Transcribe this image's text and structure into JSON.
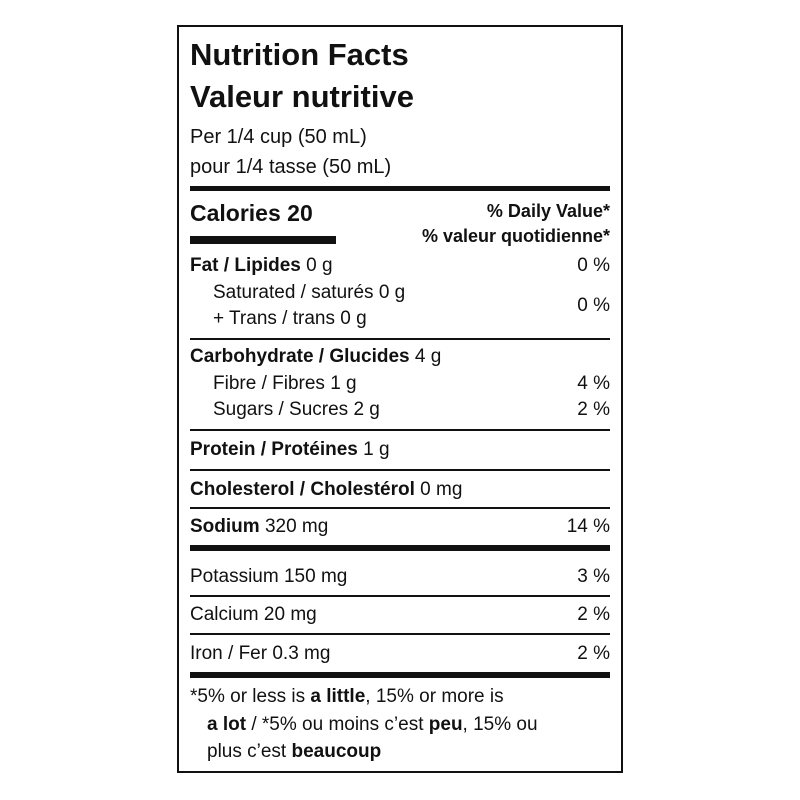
{
  "header": {
    "title_en": "Nutrition Facts",
    "title_fr": "Valeur nutritive",
    "serving_en": "Per 1/4 cup (50 mL)",
    "serving_fr": "pour 1/4 tasse (50 mL)"
  },
  "calories": {
    "label": "Calories 20",
    "dv_en": "% Daily Value*",
    "dv_fr": "% valeur quotidienne*"
  },
  "rows": [
    {
      "name": "Fat / Lipides",
      "amount": "0 g",
      "dv": "0 %"
    },
    {
      "name": "Saturated / saturés 0 g",
      "name2": "+ Trans / trans 0 g",
      "dv": "0 %"
    },
    {
      "name": "Carbohydrate / Glucides",
      "amount": "4 g"
    },
    {
      "name": "Fibre / Fibres 1 g",
      "dv": "4 %"
    },
    {
      "name": "Sugars / Sucres 2 g",
      "dv": "2 %"
    },
    {
      "name": "Protein / Protéines",
      "amount": "1 g"
    },
    {
      "name": "Cholesterol / Cholestérol",
      "amount": "0 mg"
    },
    {
      "name": "Sodium",
      "amount": "320 mg",
      "dv": "14 %"
    },
    {
      "name": "Potassium 150 mg",
      "dv": "3 %"
    },
    {
      "name": "Calcium 20 mg",
      "dv": "2 %"
    },
    {
      "name": "Iron / Fer 0.3 mg",
      "dv": "2 %"
    }
  ],
  "footnote": [
    [
      "*5% or less is ",
      "a little",
      ", 15% or more is"
    ],
    [
      "a lot",
      " / *5% ou moins c’est ",
      "peu",
      ", 15% ou"
    ],
    [
      "plus c’est ",
      "beaucoup"
    ]
  ]
}
